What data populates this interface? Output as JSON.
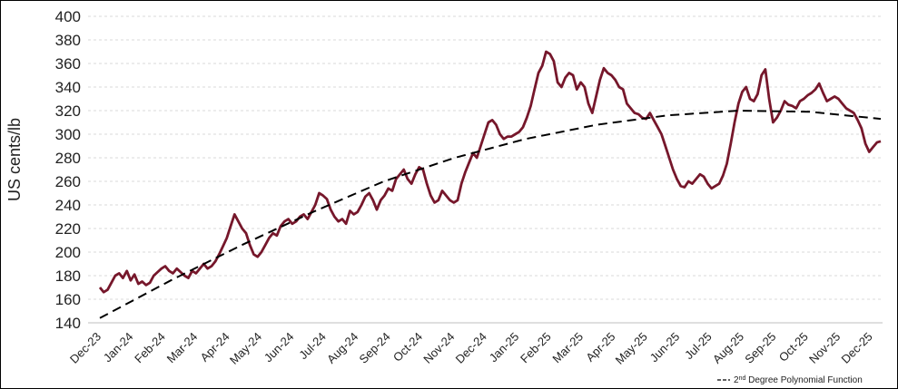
{
  "chart_data": {
    "type": "line",
    "title": "",
    "ylabel": "US cents/lb",
    "xlabel": "",
    "ylim": [
      140,
      400
    ],
    "yticks": [
      140,
      160,
      180,
      200,
      220,
      240,
      260,
      280,
      300,
      320,
      340,
      360,
      380,
      400
    ],
    "grid": "horizontal dashed",
    "legend_position": "bottom-right",
    "legend_label": "2nd Degree Polynomial Function",
    "x_tick_labels": [
      "Dec-23",
      "Jan-24",
      "Feb-24",
      "Mar-24",
      "Apr-24",
      "May-24",
      "Jun-24",
      "Jul-24",
      "Aug-24",
      "Sep-24",
      "Oct-24",
      "Nov-24",
      "Dec-24",
      "Jan-25",
      "Feb-25",
      "Mar-25",
      "Apr-25",
      "May-25",
      "Jun-25",
      "Jul-25",
      "Aug-25",
      "Sep-25",
      "Oct-25",
      "Nov-25",
      "Dec-25"
    ],
    "series": [
      {
        "color": "#76172b",
        "x_start": "2023-12-01",
        "x_end": "2025-12-31",
        "values": [
          170,
          166,
          168,
          174,
          180,
          182,
          178,
          184,
          176,
          181,
          173,
          175,
          172,
          174,
          180,
          183,
          186,
          188,
          184,
          182,
          186,
          183,
          180,
          178,
          184,
          182,
          186,
          190,
          186,
          188,
          192,
          198,
          205,
          212,
          222,
          232,
          226,
          220,
          216,
          206,
          198,
          196,
          200,
          206,
          212,
          216,
          214,
          222,
          226,
          228,
          224,
          226,
          230,
          232,
          228,
          234,
          240,
          250,
          248,
          245,
          236,
          230,
          226,
          228,
          224,
          235,
          232,
          234,
          240,
          247,
          250,
          244,
          236,
          244,
          248,
          254,
          252,
          262,
          266,
          270,
          262,
          258,
          266,
          272,
          270,
          258,
          248,
          242,
          244,
          252,
          248,
          244,
          242,
          244,
          258,
          268,
          276,
          284,
          280,
          290,
          300,
          310,
          312,
          308,
          300,
          296,
          298,
          298,
          300,
          302,
          306,
          314,
          324,
          338,
          352,
          358,
          370,
          368,
          362,
          344,
          340,
          348,
          352,
          350,
          338,
          344,
          340,
          326,
          318,
          332,
          346,
          356,
          352,
          350,
          346,
          340,
          338,
          326,
          322,
          318,
          317,
          314,
          313,
          318,
          312,
          306,
          300,
          290,
          280,
          270,
          262,
          256,
          255,
          260,
          258,
          262,
          266,
          264,
          258,
          254,
          256,
          258,
          265,
          275,
          292,
          310,
          326,
          336,
          340,
          330,
          328,
          334,
          350,
          355,
          330,
          310,
          314,
          320,
          328,
          325,
          324,
          322,
          328,
          330,
          333,
          335,
          338,
          343,
          335,
          328,
          330,
          332,
          330,
          326,
          322,
          320,
          318,
          312,
          305,
          292,
          285,
          289,
          293,
          294
        ]
      },
      {
        "name": "2nd Degree Polynomial Function",
        "style": "dashed",
        "color": "#000000",
        "fit_values": [
          144,
          176,
          206,
          234,
          260,
          280,
          296,
          308,
          316,
          320,
          319,
          313
        ]
      }
    ]
  }
}
